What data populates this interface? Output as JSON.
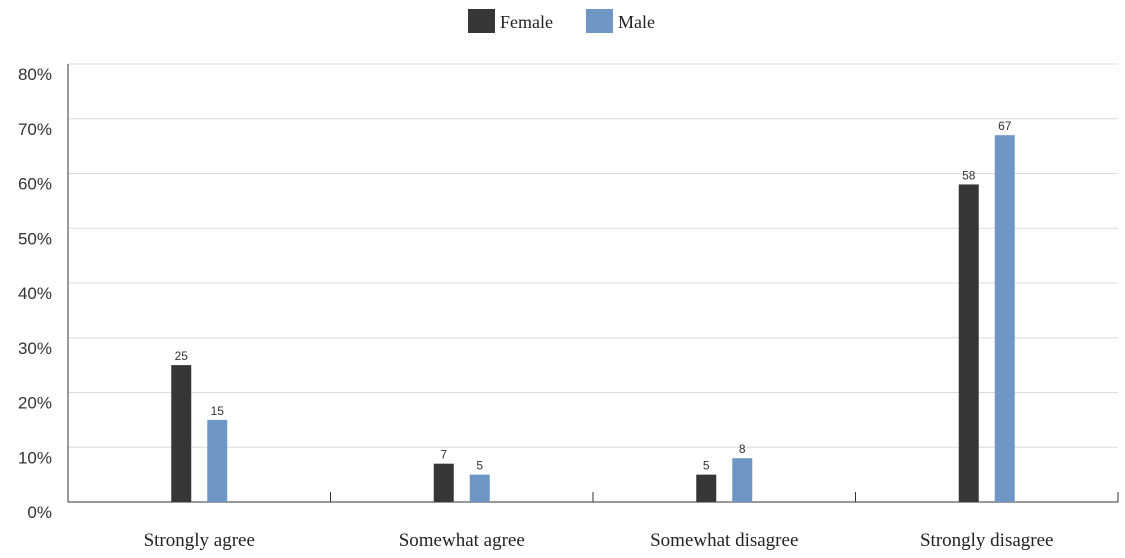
{
  "chart_data": {
    "type": "bar",
    "categories": [
      "Strongly agree",
      "Somewhat agree",
      "Somewhat disagree",
      "Strongly disagree"
    ],
    "series": [
      {
        "name": "Female",
        "values": [
          25,
          7,
          5,
          58
        ],
        "color": "#363636"
      },
      {
        "name": "Male",
        "values": [
          15,
          5,
          8,
          67
        ],
        "color": "#6e97c5"
      }
    ],
    "data_labels": [
      [
        "25",
        "7",
        "5",
        "58"
      ],
      [
        "15",
        "5",
        "8",
        "67"
      ]
    ],
    "y_ticks": [
      {
        "value": 0,
        "label": "0%"
      },
      {
        "value": 10,
        "label": "10%"
      },
      {
        "value": 20,
        "label": "20%"
      },
      {
        "value": 30,
        "label": "30%"
      },
      {
        "value": 40,
        "label": "40%"
      },
      {
        "value": 50,
        "label": "50%"
      },
      {
        "value": 60,
        "label": "60%"
      },
      {
        "value": 70,
        "label": "70%"
      },
      {
        "value": 80,
        "label": "80%"
      }
    ],
    "ylim": [
      0,
      80
    ],
    "title": "",
    "xlabel": "",
    "ylabel": "",
    "grid": true,
    "legend_position": "top-center"
  }
}
